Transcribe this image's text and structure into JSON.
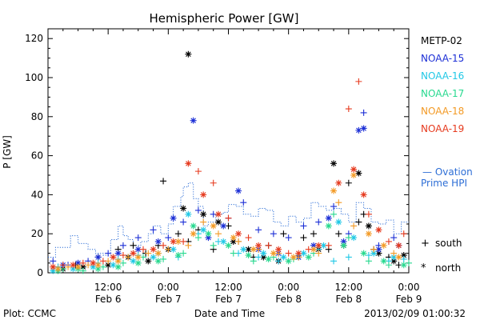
{
  "footer": {
    "left": "Plot: CCMC",
    "center": "Date and Time",
    "right": "2013/02/09 01:00:32"
  },
  "colors": {
    "METP-02": "#000000",
    "NOAA-15": "#1c2fd6",
    "NOAA-16": "#20c8e6",
    "NOAA-17": "#27d98f",
    "NOAA-18": "#f39a25",
    "NOAA-19": "#e63a1e",
    "ovation": "#2d6ed6"
  },
  "chart_data": {
    "type": "scatter",
    "title": "Hemispheric Power [GW]",
    "xlabel": "Date and Time",
    "ylabel": "P [GW]",
    "ylim": [
      0,
      125
    ],
    "xlim": [
      0,
      72
    ],
    "x_unit": "hours since Feb 6 00:00",
    "y_ticks": [
      0,
      20,
      40,
      60,
      80,
      100,
      120
    ],
    "x_ticks": [
      {
        "x": 12,
        "time": "12:00",
        "date": "Feb 6"
      },
      {
        "x": 24,
        "time": "0:00",
        "date": "Feb 7"
      },
      {
        "x": 36,
        "time": "12:00",
        "date": "Feb 7"
      },
      {
        "x": 48,
        "time": "0:00",
        "date": "Feb 8"
      },
      {
        "x": 60,
        "time": "12:00",
        "date": "Feb 8"
      },
      {
        "x": 72,
        "time": "0:00",
        "date": "Feb 9"
      }
    ],
    "legend": [
      "METP-02",
      "NOAA-15",
      "NOAA-16",
      "NOAA-17",
      "NOAA-18",
      "NOAA-19"
    ],
    "marker_legend": [
      {
        "symbol": "+",
        "label": "south"
      },
      {
        "symbol": "*",
        "label": "north"
      }
    ],
    "ovation_label": [
      "— Ovation",
      "Prime HPI"
    ],
    "ovation": {
      "name": "Ovation Prime HPI",
      "x": [
        0,
        1.5,
        1.5,
        4.5,
        4.5,
        6,
        6,
        8,
        8,
        9.5,
        9.5,
        11,
        11,
        12.5,
        12.5,
        14,
        14,
        15,
        15,
        16,
        16,
        17,
        17,
        18.5,
        18.5,
        20,
        20,
        21,
        21,
        22.5,
        22.5,
        24,
        24,
        25,
        25,
        26.5,
        26.5,
        27,
        27,
        28,
        28,
        29,
        29,
        30,
        30,
        31,
        31,
        32,
        32,
        33.5,
        33.5,
        35,
        35,
        36,
        36,
        37.5,
        37.5,
        39,
        39,
        40.5,
        40.5,
        42,
        42,
        43.5,
        43.5,
        45,
        45,
        46.5,
        46.5,
        48,
        48,
        49.5,
        49.5,
        51,
        51,
        52.5,
        52.5,
        54,
        54,
        55.5,
        55.5,
        57,
        57,
        58.5,
        58.5,
        60,
        60,
        61.5,
        61.5,
        63,
        63,
        64.5,
        64.5,
        66,
        66,
        67.5,
        67.5,
        69,
        69,
        70.5,
        70.5,
        72
      ],
      "y": [
        8,
        8,
        13,
        13,
        19,
        19,
        15,
        15,
        12,
        12,
        10,
        10,
        9,
        9,
        17,
        17,
        24,
        24,
        19,
        19,
        17,
        17,
        14,
        14,
        16,
        16,
        20,
        20,
        24,
        24,
        20,
        20,
        25,
        25,
        34,
        34,
        39,
        39,
        44,
        44,
        46,
        46,
        38,
        38,
        34,
        34,
        24,
        24,
        26,
        26,
        30,
        30,
        31,
        31,
        35,
        35,
        34,
        34,
        30,
        30,
        29,
        29,
        33,
        33,
        32,
        32,
        26,
        26,
        24,
        24,
        29,
        29,
        26,
        26,
        28,
        28,
        36,
        36,
        34,
        34,
        32,
        32,
        33,
        33,
        30,
        30,
        26,
        26,
        36,
        36,
        33,
        33,
        26,
        26,
        25,
        25,
        27,
        27,
        20,
        20,
        26,
        26
      ]
    },
    "series": [
      {
        "name": "METP-02",
        "south": [
          [
            2,
            3
          ],
          [
            5.5,
            4
          ],
          [
            10,
            8
          ],
          [
            14,
            12
          ],
          [
            17,
            14
          ],
          [
            19.5,
            10
          ],
          [
            22,
            14
          ],
          [
            23,
            47
          ],
          [
            26,
            20
          ],
          [
            28,
            16
          ],
          [
            30,
            22
          ],
          [
            33,
            12
          ],
          [
            36,
            24
          ],
          [
            38,
            16
          ],
          [
            41,
            8
          ],
          [
            44,
            14
          ],
          [
            47,
            20
          ],
          [
            51,
            18
          ],
          [
            53,
            20
          ],
          [
            56,
            12
          ],
          [
            58,
            20
          ],
          [
            60,
            46
          ],
          [
            62,
            26
          ],
          [
            63,
            30
          ],
          [
            65,
            12
          ],
          [
            68,
            8
          ],
          [
            70,
            4
          ]
        ],
        "north": [
          [
            3,
            2
          ],
          [
            7,
            3
          ],
          [
            12,
            4
          ],
          [
            16,
            8
          ],
          [
            20,
            6
          ],
          [
            24,
            12
          ],
          [
            27,
            33
          ],
          [
            28,
            112
          ],
          [
            31,
            30
          ],
          [
            34,
            26
          ],
          [
            37,
            16
          ],
          [
            40,
            12
          ],
          [
            43,
            8
          ],
          [
            46,
            6
          ],
          [
            50,
            8
          ],
          [
            54,
            12
          ],
          [
            57,
            56
          ],
          [
            59,
            14
          ],
          [
            62,
            51
          ],
          [
            64,
            24
          ],
          [
            66,
            10
          ],
          [
            69,
            6
          ],
          [
            71,
            9
          ]
        ]
      },
      {
        "name": "NOAA-15",
        "south": [
          [
            1,
            6
          ],
          [
            4,
            4
          ],
          [
            8,
            6
          ],
          [
            12,
            10
          ],
          [
            15,
            14
          ],
          [
            18,
            18
          ],
          [
            21,
            22
          ],
          [
            24,
            18
          ],
          [
            27,
            26
          ],
          [
            30,
            32
          ],
          [
            33,
            30
          ],
          [
            36,
            28
          ],
          [
            39,
            36
          ],
          [
            42,
            22
          ],
          [
            45,
            20
          ],
          [
            48,
            18
          ],
          [
            51,
            24
          ],
          [
            54,
            26
          ],
          [
            57,
            34
          ],
          [
            60,
            20
          ],
          [
            63,
            82
          ],
          [
            66,
            14
          ],
          [
            69,
            18
          ]
        ],
        "north": [
          [
            3,
            4
          ],
          [
            6,
            5
          ],
          [
            10,
            8
          ],
          [
            14,
            10
          ],
          [
            18,
            12
          ],
          [
            22,
            16
          ],
          [
            25,
            28
          ],
          [
            29,
            78
          ],
          [
            32,
            18
          ],
          [
            35,
            24
          ],
          [
            38,
            42
          ],
          [
            42,
            12
          ],
          [
            46,
            10
          ],
          [
            50,
            8
          ],
          [
            53,
            14
          ],
          [
            56,
            28
          ],
          [
            59,
            16
          ],
          [
            62,
            73
          ],
          [
            63,
            74
          ],
          [
            66,
            12
          ],
          [
            70,
            14
          ]
        ]
      },
      {
        "name": "NOAA-16",
        "south": [
          [
            2,
            3
          ],
          [
            6,
            2
          ],
          [
            10,
            5
          ],
          [
            14,
            7
          ],
          [
            18,
            9
          ],
          [
            22,
            10
          ],
          [
            26,
            8
          ],
          [
            30,
            20
          ],
          [
            34,
            16
          ],
          [
            38,
            10
          ],
          [
            42,
            8
          ],
          [
            46,
            6
          ],
          [
            50,
            9
          ],
          [
            54,
            12
          ],
          [
            57,
            6
          ],
          [
            60,
            8
          ],
          [
            64,
            9
          ],
          [
            68,
            6
          ],
          [
            71,
            7
          ]
        ],
        "north": [
          [
            1,
            1
          ],
          [
            5,
            2
          ],
          [
            9,
            3
          ],
          [
            13,
            4
          ],
          [
            17,
            6
          ],
          [
            21,
            8
          ],
          [
            25,
            12
          ],
          [
            28,
            30
          ],
          [
            31,
            22
          ],
          [
            35,
            16
          ],
          [
            39,
            12
          ],
          [
            43,
            10
          ],
          [
            47,
            8
          ],
          [
            51,
            10
          ],
          [
            55,
            14
          ],
          [
            58,
            26
          ],
          [
            61,
            18
          ],
          [
            65,
            10
          ],
          [
            69,
            8
          ]
        ]
      },
      {
        "name": "NOAA-17",
        "south": [
          [
            3,
            2
          ],
          [
            7,
            1
          ],
          [
            11,
            3
          ],
          [
            15,
            5
          ],
          [
            19,
            8
          ],
          [
            23,
            7
          ],
          [
            27,
            10
          ],
          [
            30,
            18
          ],
          [
            33,
            14
          ],
          [
            37,
            10
          ],
          [
            41,
            6
          ],
          [
            45,
            8
          ],
          [
            49,
            7
          ],
          [
            53,
            10
          ],
          [
            57,
            30
          ],
          [
            60,
            18
          ],
          [
            64,
            6
          ],
          [
            68,
            4
          ],
          [
            72,
            5
          ]
        ],
        "north": [
          [
            2,
            1
          ],
          [
            6,
            2
          ],
          [
            10,
            2
          ],
          [
            14,
            3
          ],
          [
            18,
            5
          ],
          [
            22,
            6
          ],
          [
            26,
            9
          ],
          [
            29,
            24
          ],
          [
            32,
            20
          ],
          [
            36,
            14
          ],
          [
            40,
            9
          ],
          [
            44,
            7
          ],
          [
            48,
            6
          ],
          [
            52,
            8
          ],
          [
            56,
            24
          ],
          [
            59,
            14
          ],
          [
            63,
            10
          ],
          [
            67,
            6
          ],
          [
            71,
            4
          ]
        ]
      },
      {
        "name": "NOAA-18",
        "south": [
          [
            4,
            3
          ],
          [
            8,
            4
          ],
          [
            12,
            6
          ],
          [
            16,
            8
          ],
          [
            20,
            10
          ],
          [
            24,
            12
          ],
          [
            28,
            14
          ],
          [
            31,
            26
          ],
          [
            34,
            20
          ],
          [
            38,
            16
          ],
          [
            42,
            12
          ],
          [
            46,
            10
          ],
          [
            50,
            8
          ],
          [
            54,
            10
          ],
          [
            58,
            36
          ],
          [
            61,
            24
          ],
          [
            65,
            12
          ],
          [
            69,
            10
          ]
        ],
        "north": [
          [
            2,
            2
          ],
          [
            6,
            3
          ],
          [
            10,
            4
          ],
          [
            14,
            6
          ],
          [
            18,
            8
          ],
          [
            22,
            10
          ],
          [
            26,
            16
          ],
          [
            29,
            20
          ],
          [
            33,
            24
          ],
          [
            37,
            18
          ],
          [
            41,
            12
          ],
          [
            45,
            10
          ],
          [
            49,
            8
          ],
          [
            53,
            12
          ],
          [
            57,
            42
          ],
          [
            61,
            50
          ],
          [
            64,
            20
          ],
          [
            67,
            14
          ],
          [
            70,
            8
          ]
        ]
      },
      {
        "name": "NOAA-19",
        "south": [
          [
            3,
            4
          ],
          [
            7,
            5
          ],
          [
            11,
            6
          ],
          [
            15,
            9
          ],
          [
            19,
            12
          ],
          [
            23,
            14
          ],
          [
            27,
            16
          ],
          [
            30,
            52
          ],
          [
            33,
            46
          ],
          [
            36,
            28
          ],
          [
            40,
            18
          ],
          [
            44,
            14
          ],
          [
            48,
            10
          ],
          [
            52,
            12
          ],
          [
            56,
            14
          ],
          [
            60,
            84
          ],
          [
            62,
            98
          ],
          [
            64,
            30
          ],
          [
            68,
            16
          ],
          [
            71,
            20
          ]
        ],
        "north": [
          [
            1,
            3
          ],
          [
            5,
            4
          ],
          [
            9,
            5
          ],
          [
            13,
            8
          ],
          [
            17,
            10
          ],
          [
            21,
            12
          ],
          [
            25,
            16
          ],
          [
            28,
            56
          ],
          [
            31,
            40
          ],
          [
            34,
            30
          ],
          [
            38,
            20
          ],
          [
            42,
            14
          ],
          [
            46,
            12
          ],
          [
            50,
            10
          ],
          [
            54,
            14
          ],
          [
            58,
            46
          ],
          [
            61,
            53
          ],
          [
            63,
            40
          ],
          [
            66,
            22
          ],
          [
            70,
            14
          ]
        ]
      }
    ]
  }
}
